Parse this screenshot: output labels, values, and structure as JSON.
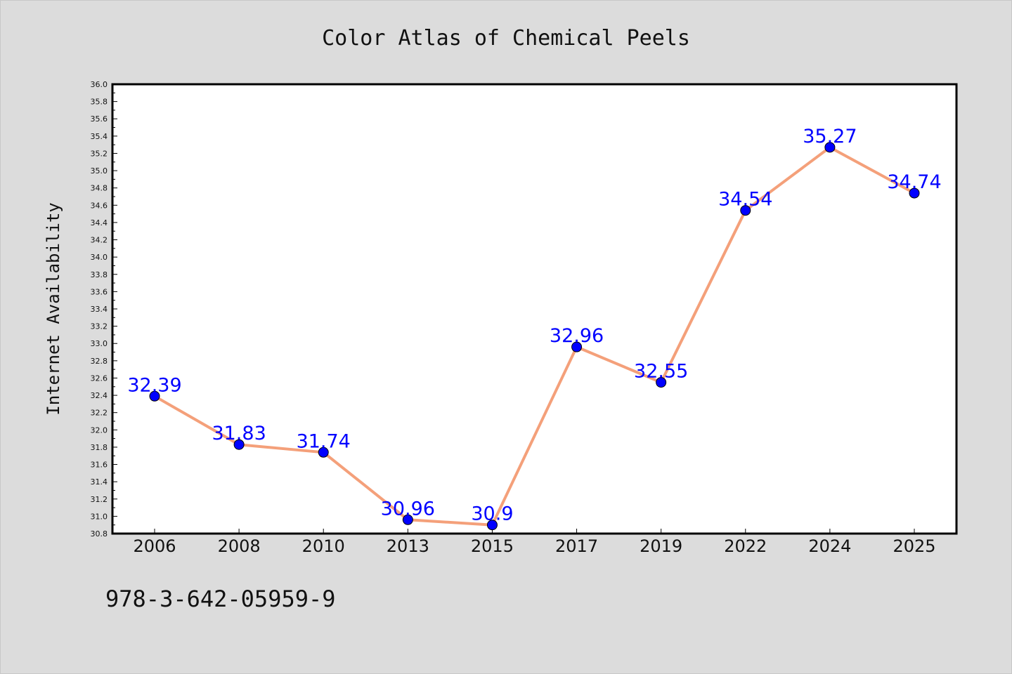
{
  "chart_data": {
    "type": "line",
    "title": "Color Atlas of Chemical Peels",
    "xlabel": "",
    "ylabel": "Internet Availability",
    "categories": [
      "2006",
      "2008",
      "2010",
      "2013",
      "2015",
      "2017",
      "2019",
      "2022",
      "2024",
      "2025"
    ],
    "series": [
      {
        "values": [
          32.39,
          31.83,
          31.74,
          30.96,
          30.9,
          32.96,
          32.55,
          34.54,
          35.27,
          34.74
        ],
        "labels": [
          "32.39",
          "31.83",
          "31.74",
          "30.96",
          "30.9",
          "32.96",
          "32.55",
          "34.54",
          "35.27",
          "34.74"
        ],
        "line_color": "#f4a07a",
        "marker_color": "#0000ff"
      }
    ],
    "ylim": [
      30.8,
      36.0
    ],
    "yticks": [
      "30.8",
      "31.0",
      "31.2",
      "31.4",
      "31.6",
      "31.8",
      "32.0",
      "32.2",
      "32.4",
      "32.6",
      "32.8",
      "33.0",
      "33.2",
      "33.4",
      "33.6",
      "33.8",
      "34.0",
      "34.2",
      "34.4",
      "34.6",
      "34.8",
      "35.0",
      "35.2",
      "35.4",
      "35.6",
      "35.8",
      "36.0"
    ],
    "grid": false,
    "legend": "none"
  },
  "footer_text": "978-3-642-05959-9",
  "colors": {
    "background": "#dcdcdc",
    "plot_background": "#ffffff",
    "data_label": "#0000ff"
  }
}
